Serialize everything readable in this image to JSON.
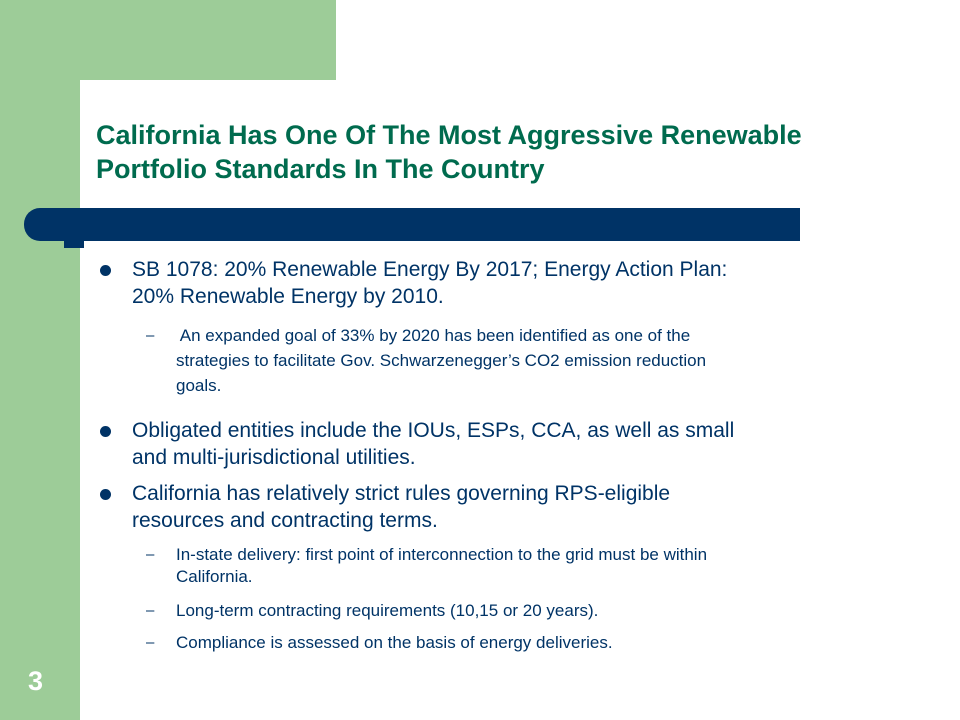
{
  "slide": {
    "title_line1": "California Has One Of The Most Aggressive Renewable",
    "title_line2": "Portfolio Standards In The Country",
    "bullets": [
      {
        "line1": "SB 1078: 20% Renewable Energy By 2017;  Energy Action Plan:",
        "line2": "20% Renewable Energy by 2010.",
        "subs": [
          {
            "line1": " An expanded goal of 33% by 2020 has been identified as one of the",
            "line2": "strategies to facilitate Gov. Schwarzenegger’s CO2 emission reduction",
            "line3": "goals."
          }
        ]
      },
      {
        "line1": "Obligated entities include the IOUs, ESPs, CCA, as well as small",
        "line2": "and multi-jurisdictional utilities."
      },
      {
        "line1": "California has relatively strict rules governing RPS-eligible",
        "line2": "resources and contracting terms.",
        "subs": [
          {
            "line1": "In-state delivery: first point of interconnection to the grid must be within",
            "line2": "California."
          },
          {
            "line1": "Long-term contracting requirements (10,15 or 20 years)."
          },
          {
            "line1": "Compliance is assessed on the basis of energy deliveries."
          }
        ]
      }
    ],
    "sub_dash": "–",
    "page_number": "3"
  },
  "colors": {
    "accent_green": "#9dcc98",
    "title_green": "#006b4e",
    "navy": "#003366",
    "background": "#ffffff"
  }
}
